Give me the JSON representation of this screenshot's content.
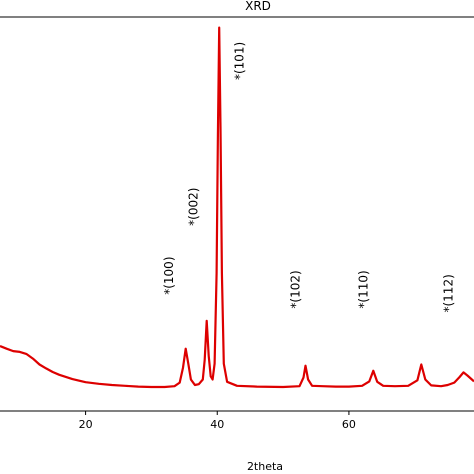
{
  "chart_data": {
    "type": "line",
    "title": "XRD",
    "xlabel": "2theta",
    "ylabel": "",
    "xlim": [
      7,
      79
    ],
    "ylim": [
      0,
      100
    ],
    "x_ticks": [
      20,
      40,
      60
    ],
    "grid": false,
    "series": [
      {
        "color": "#dd0000",
        "points": [
          [
            7,
            16.5
          ],
          [
            8,
            15.8
          ],
          [
            9,
            15.2
          ],
          [
            10,
            15.0
          ],
          [
            11,
            14.5
          ],
          [
            12,
            13.3
          ],
          [
            13,
            11.8
          ],
          [
            14,
            10.8
          ],
          [
            15,
            9.9
          ],
          [
            16,
            9.2
          ],
          [
            18,
            8.1
          ],
          [
            20,
            7.3
          ],
          [
            22,
            6.9
          ],
          [
            24,
            6.6
          ],
          [
            26,
            6.4
          ],
          [
            28,
            6.2
          ],
          [
            30,
            6.1
          ],
          [
            32,
            6.1
          ],
          [
            33.5,
            6.3
          ],
          [
            34.3,
            7.2
          ],
          [
            34.8,
            11.0
          ],
          [
            35.2,
            15.8
          ],
          [
            35.6,
            12.0
          ],
          [
            36.0,
            8.0
          ],
          [
            36.6,
            6.6
          ],
          [
            37.2,
            6.8
          ],
          [
            37.8,
            8.0
          ],
          [
            38.1,
            13.0
          ],
          [
            38.4,
            22.9
          ],
          [
            38.7,
            14.0
          ],
          [
            39.0,
            8.8
          ],
          [
            39.3,
            8.0
          ],
          [
            39.6,
            12.0
          ],
          [
            39.9,
            35.0
          ],
          [
            40.1,
            70.0
          ],
          [
            40.3,
            97.3
          ],
          [
            40.5,
            72.0
          ],
          [
            40.7,
            35.0
          ],
          [
            41.0,
            12.0
          ],
          [
            41.5,
            7.4
          ],
          [
            43,
            6.4
          ],
          [
            46,
            6.2
          ],
          [
            50,
            6.1
          ],
          [
            52.5,
            6.3
          ],
          [
            53.1,
            8.5
          ],
          [
            53.4,
            11.5
          ],
          [
            53.8,
            8.0
          ],
          [
            54.4,
            6.4
          ],
          [
            56,
            6.3
          ],
          [
            58,
            6.2
          ],
          [
            60,
            6.2
          ],
          [
            62,
            6.4
          ],
          [
            63.1,
            7.5
          ],
          [
            63.7,
            10.2
          ],
          [
            64.3,
            7.4
          ],
          [
            65.2,
            6.4
          ],
          [
            67,
            6.3
          ],
          [
            69,
            6.4
          ],
          [
            70.4,
            7.8
          ],
          [
            71.0,
            11.8
          ],
          [
            71.6,
            8.0
          ],
          [
            72.5,
            6.5
          ],
          [
            74,
            6.3
          ],
          [
            75,
            6.6
          ],
          [
            76,
            7.2
          ],
          [
            76.8,
            8.6
          ],
          [
            77.4,
            9.8
          ],
          [
            78,
            9.0
          ],
          [
            79,
            7.5
          ]
        ]
      }
    ],
    "annotations": [
      {
        "text": "*(101)",
        "x": 44.0,
        "y": 84.0
      },
      {
        "text": "*(002)",
        "x": 37.0,
        "y": 47.0
      },
      {
        "text": "*(100)",
        "x": 33.3,
        "y": 29.5
      },
      {
        "text": "*(102)",
        "x": 52.5,
        "y": 26.0
      },
      {
        "text": "*(110)",
        "x": 62.8,
        "y": 26.0
      },
      {
        "text": "*(112)",
        "x": 75.7,
        "y": 25.0
      }
    ]
  }
}
